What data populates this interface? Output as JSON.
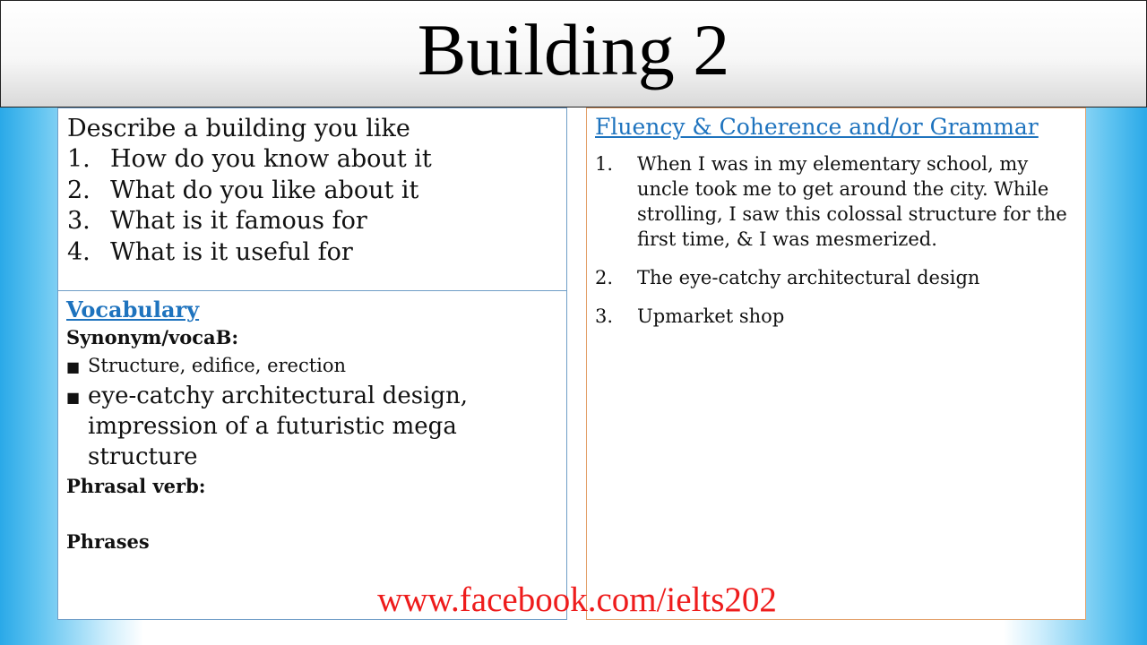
{
  "title": "Building 2",
  "question": {
    "prompt": "Describe a building you like",
    "items": [
      {
        "num": "1.",
        "text": "How do you know about it"
      },
      {
        "num": "2.",
        "text": "What do you like about it"
      },
      {
        "num": "3.",
        "text": "What is it famous for"
      },
      {
        "num": "4.",
        "text": "What is it useful for"
      }
    ]
  },
  "vocabulary": {
    "heading": "Vocabulary",
    "synonym_label": "Synonym/vocaB:",
    "bullets": [
      "Structure, edifice, erection",
      "eye-catchy architectural design,  impression of a futuristic mega structure"
    ],
    "phrasal_label": "Phrasal verb:",
    "phrases_label": "Phrases"
  },
  "fluency": {
    "heading": "Fluency & Coherence and/or Grammar",
    "items": [
      {
        "num": "1.",
        "text": "When I was in my elementary school, my uncle took me to get around the city. While strolling, I saw this colossal structure for the first time, & I was mesmerized."
      },
      {
        "num": "2.",
        "text": "The eye-catchy architectural design"
      },
      {
        "num": "3.",
        "text": "Upmarket shop"
      }
    ]
  },
  "footer": {
    "website": "www.facebook.com/ielts202"
  },
  "colors": {
    "link_blue": "#1e73be",
    "website_red": "#ee1c1c",
    "side_blue": "#2aa9e8"
  }
}
